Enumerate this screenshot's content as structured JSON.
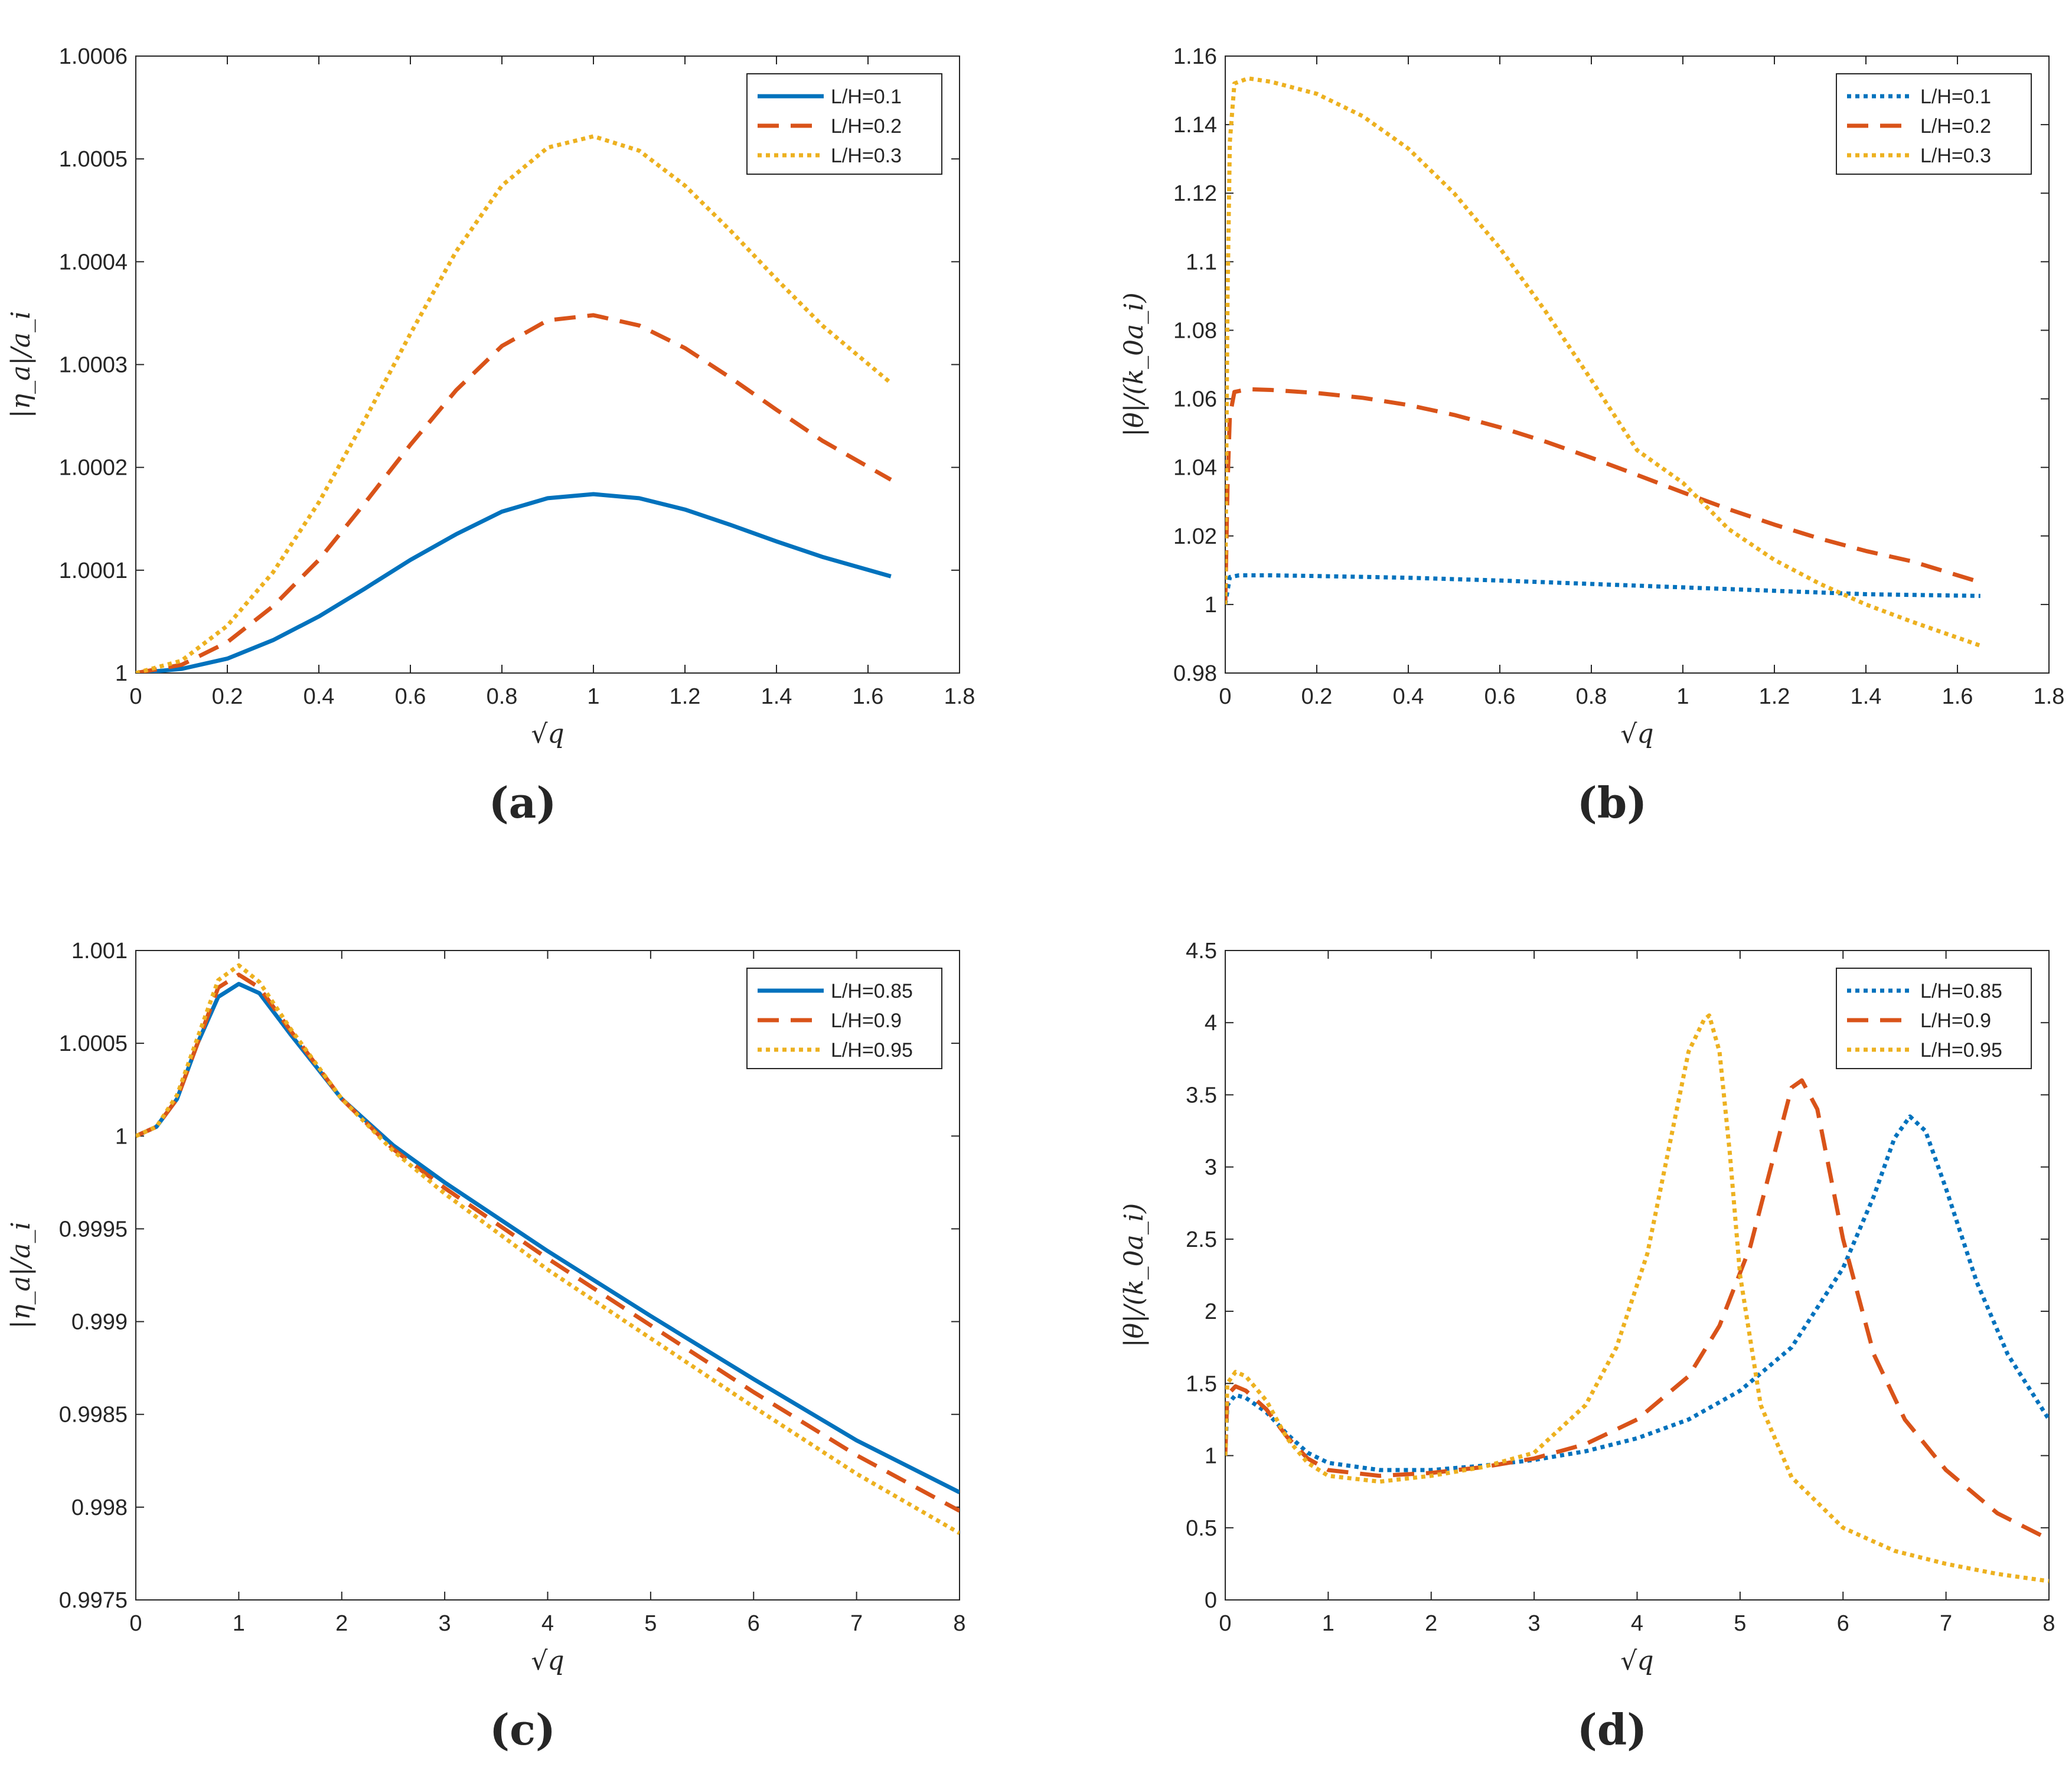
{
  "chart_data": [
    {
      "id": "a",
      "type": "line",
      "caption": "(a)",
      "xlabel": "√q",
      "ylabel": "|η_a|/a_i",
      "xlim": [
        0,
        1.8
      ],
      "ylim": [
        1.0,
        1.0006
      ],
      "xticks": [
        0,
        0.2,
        0.4,
        0.6,
        0.8,
        1,
        1.2,
        1.4,
        1.6,
        1.8
      ],
      "xticklabels": [
        "0",
        "0.2",
        "0.4",
        "0.6",
        "0.8",
        "1",
        "1.2",
        "1.4",
        "1.6",
        "1.8"
      ],
      "yticks": [
        1.0,
        1.0001,
        1.0002,
        1.0003,
        1.0004,
        1.0005,
        1.0006
      ],
      "yticklabels": [
        "1",
        "1.0001",
        "1.0002",
        "1.0003",
        "1.0004",
        "1.0005",
        "1.0006"
      ],
      "legend_position": "top-right",
      "series": [
        {
          "name": "L/H=0.1",
          "color": "#0072BD",
          "style": "solid",
          "x": [
            0,
            0.1,
            0.2,
            0.3,
            0.4,
            0.5,
            0.6,
            0.7,
            0.8,
            0.9,
            1.0,
            1.1,
            1.2,
            1.3,
            1.4,
            1.5,
            1.65
          ],
          "y": [
            1.0,
            1.000004,
            1.000014,
            1.000032,
            1.000055,
            1.000082,
            1.00011,
            1.000135,
            1.000157,
            1.00017,
            1.000174,
            1.00017,
            1.000159,
            1.000144,
            1.000128,
            1.000113,
            1.000094
          ]
        },
        {
          "name": "L/H=0.2",
          "color": "#D95319",
          "style": "dashed",
          "x": [
            0,
            0.1,
            0.2,
            0.3,
            0.4,
            0.5,
            0.6,
            0.7,
            0.8,
            0.9,
            1.0,
            1.1,
            1.2,
            1.3,
            1.4,
            1.5,
            1.65
          ],
          "y": [
            1.0,
            1.000008,
            1.00003,
            1.000065,
            1.00011,
            1.000165,
            1.000222,
            1.000275,
            1.000318,
            1.000343,
            1.000348,
            1.000338,
            1.000316,
            1.000287,
            1.000256,
            1.000226,
            1.000188
          ]
        },
        {
          "name": "L/H=0.3",
          "color": "#EDB120",
          "style": "dotted",
          "x": [
            0,
            0.1,
            0.2,
            0.3,
            0.4,
            0.5,
            0.6,
            0.7,
            0.8,
            0.9,
            1.0,
            1.1,
            1.2,
            1.3,
            1.4,
            1.5,
            1.65
          ],
          "y": [
            1.0,
            1.000012,
            1.000046,
            1.000098,
            1.000166,
            1.000246,
            1.00033,
            1.00041,
            1.000474,
            1.000511,
            1.000522,
            1.000508,
            1.000474,
            1.00043,
            1.000383,
            1.000338,
            1.000282
          ]
        }
      ]
    },
    {
      "id": "b",
      "type": "line",
      "caption": "(b)",
      "xlabel": "√q",
      "ylabel": "|θ|/(k_0a_i)",
      "xlim": [
        0,
        1.8
      ],
      "ylim": [
        0.98,
        1.16
      ],
      "xticks": [
        0,
        0.2,
        0.4,
        0.6,
        0.8,
        1,
        1.2,
        1.4,
        1.6,
        1.8
      ],
      "xticklabels": [
        "0",
        "0.2",
        "0.4",
        "0.6",
        "0.8",
        "1",
        "1.2",
        "1.4",
        "1.6",
        "1.8"
      ],
      "yticks": [
        0.98,
        1.0,
        1.02,
        1.04,
        1.06,
        1.08,
        1.1,
        1.12,
        1.14,
        1.16
      ],
      "yticklabels": [
        "0.98",
        "1",
        "1.02",
        "1.04",
        "1.06",
        "1.08",
        "1.1",
        "1.12",
        "1.14",
        "1.16"
      ],
      "legend_position": "top-right",
      "series": [
        {
          "name": "L/H=0.1",
          "color": "#0072BD",
          "style": "dotted",
          "x": [
            0,
            0.005,
            0.01,
            0.03,
            0.1,
            0.2,
            0.4,
            0.6,
            0.8,
            1.0,
            1.2,
            1.4,
            1.65
          ],
          "y": [
            1.0,
            1.004,
            1.008,
            1.0085,
            1.0085,
            1.0083,
            1.0078,
            1.007,
            1.006,
            1.005,
            1.004,
            1.003,
            1.0025
          ]
        },
        {
          "name": "L/H=0.2",
          "color": "#D95319",
          "style": "dashed",
          "x": [
            0,
            0.005,
            0.01,
            0.02,
            0.05,
            0.1,
            0.2,
            0.3,
            0.4,
            0.5,
            0.6,
            0.7,
            0.8,
            0.9,
            1.0,
            1.1,
            1.2,
            1.3,
            1.4,
            1.5,
            1.65
          ],
          "y": [
            1.0,
            1.035,
            1.055,
            1.062,
            1.0628,
            1.0626,
            1.0617,
            1.0603,
            1.0582,
            1.0553,
            1.0517,
            1.0475,
            1.0428,
            1.0378,
            1.0327,
            1.0278,
            1.0233,
            1.0192,
            1.0156,
            1.0126,
            1.0065
          ]
        },
        {
          "name": "L/H=0.3",
          "color": "#EDB120",
          "style": "dotted",
          "x": [
            0,
            0.005,
            0.01,
            0.02,
            0.05,
            0.1,
            0.2,
            0.3,
            0.4,
            0.5,
            0.6,
            0.7,
            0.8,
            0.9,
            1.0,
            1.1,
            1.2,
            1.3,
            1.4,
            1.5,
            1.65
          ],
          "y": [
            1.0,
            1.09,
            1.135,
            1.152,
            1.1535,
            1.1525,
            1.149,
            1.1425,
            1.133,
            1.12,
            1.104,
            1.0855,
            1.0655,
            1.045,
            1.0355,
            1.022,
            1.013,
            1.006,
            1.0,
            0.995,
            0.988
          ]
        }
      ]
    },
    {
      "id": "c",
      "type": "line",
      "caption": "(c)",
      "xlabel": "√q",
      "ylabel": "|η_a|/a_i",
      "xlim": [
        0,
        8
      ],
      "ylim": [
        0.9975,
        1.001
      ],
      "xticks": [
        0,
        1,
        2,
        3,
        4,
        5,
        6,
        7,
        8
      ],
      "xticklabels": [
        "0",
        "1",
        "2",
        "3",
        "4",
        "5",
        "6",
        "7",
        "8"
      ],
      "yticks": [
        0.9975,
        0.998,
        0.9985,
        0.999,
        0.9995,
        1.0,
        1.0005,
        1.001
      ],
      "yticklabels": [
        "0.9975",
        "0.998",
        "0.9985",
        "0.999",
        "0.9995",
        "1",
        "1.0005",
        "1.001"
      ],
      "legend_position": "top-right",
      "series": [
        {
          "name": "L/H=0.85",
          "color": "#0072BD",
          "style": "solid",
          "x": [
            0,
            0.2,
            0.4,
            0.6,
            0.8,
            1.0,
            1.2,
            1.5,
            2.0,
            2.5,
            3,
            4,
            5,
            6,
            7,
            8
          ],
          "y": [
            1.0,
            1.00005,
            1.0002,
            1.0005,
            1.00075,
            1.00082,
            1.00077,
            1.00055,
            1.0002,
            0.99995,
            0.99975,
            0.99938,
            0.99903,
            0.99869,
            0.99836,
            0.99808
          ]
        },
        {
          "name": "L/H=0.9",
          "color": "#D95319",
          "style": "dashed",
          "x": [
            0,
            0.2,
            0.4,
            0.6,
            0.8,
            1.0,
            1.2,
            1.5,
            2.0,
            2.5,
            3,
            4,
            5,
            6,
            7,
            8
          ],
          "y": [
            1.0,
            1.00005,
            1.0002,
            1.0005,
            1.0008,
            1.00087,
            1.0008,
            1.00057,
            1.0002,
            0.99993,
            0.99972,
            0.99934,
            0.99898,
            0.99862,
            0.99828,
            0.99798
          ]
        },
        {
          "name": "L/H=0.95",
          "color": "#EDB120",
          "style": "dotted",
          "x": [
            0,
            0.2,
            0.4,
            0.6,
            0.8,
            1.0,
            1.2,
            1.5,
            2.0,
            2.5,
            3,
            4,
            5,
            6,
            7,
            8
          ],
          "y": [
            1.0,
            1.00005,
            1.00022,
            1.00053,
            1.00084,
            1.00092,
            1.00083,
            1.00058,
            1.0002,
            0.99992,
            0.99969,
            0.99928,
            0.99891,
            0.99854,
            0.99818,
            0.99786
          ]
        }
      ]
    },
    {
      "id": "d",
      "type": "line",
      "caption": "(d)",
      "xlabel": "√q",
      "ylabel": "|θ|/(k_0a_i)",
      "xlim": [
        0,
        8
      ],
      "ylim": [
        0,
        4.5
      ],
      "xticks": [
        0,
        1,
        2,
        3,
        4,
        5,
        6,
        7,
        8
      ],
      "xticklabels": [
        "0",
        "1",
        "2",
        "3",
        "4",
        "5",
        "6",
        "7",
        "8"
      ],
      "yticks": [
        0,
        0.5,
        1,
        1.5,
        2,
        2.5,
        3,
        3.5,
        4,
        4.5
      ],
      "yticklabels": [
        "0",
        "0.5",
        "1",
        "1.5",
        "2",
        "2.5",
        "3",
        "3.5",
        "4",
        "4.5"
      ],
      "legend_position": "top-right",
      "series": [
        {
          "name": "L/H=0.85",
          "color": "#0072BD",
          "style": "dotted",
          "x": [
            0,
            0.02,
            0.1,
            0.2,
            0.4,
            0.6,
            0.8,
            1.0,
            1.5,
            2.0,
            2.5,
            3.0,
            3.5,
            4.0,
            4.5,
            5.0,
            5.5,
            6.0,
            6.3,
            6.5,
            6.65,
            6.8,
            7.0,
            7.3,
            7.6,
            8.0
          ],
          "y": [
            1.0,
            1.35,
            1.42,
            1.4,
            1.3,
            1.15,
            1.02,
            0.95,
            0.9,
            0.9,
            0.93,
            0.97,
            1.03,
            1.12,
            1.25,
            1.45,
            1.75,
            2.3,
            2.8,
            3.2,
            3.35,
            3.25,
            2.85,
            2.2,
            1.7,
            1.25
          ]
        },
        {
          "name": "L/H=0.9",
          "color": "#D95319",
          "style": "dashed",
          "x": [
            0,
            0.02,
            0.1,
            0.2,
            0.4,
            0.6,
            0.8,
            1.0,
            1.5,
            2.0,
            2.5,
            3.0,
            3.5,
            4.0,
            4.5,
            4.8,
            5.1,
            5.3,
            5.5,
            5.6,
            5.75,
            6.0,
            6.3,
            6.6,
            7.0,
            7.5,
            8.0
          ],
          "y": [
            1.0,
            1.42,
            1.48,
            1.45,
            1.32,
            1.13,
            0.98,
            0.9,
            0.86,
            0.88,
            0.92,
            0.98,
            1.08,
            1.25,
            1.55,
            1.9,
            2.45,
            3.0,
            3.55,
            3.6,
            3.4,
            2.5,
            1.7,
            1.25,
            0.9,
            0.6,
            0.42
          ]
        },
        {
          "name": "L/H=0.95",
          "color": "#EDB120",
          "style": "dotted",
          "x": [
            0,
            0.02,
            0.1,
            0.2,
            0.4,
            0.6,
            0.8,
            1.0,
            1.5,
            2.0,
            2.5,
            3.0,
            3.5,
            3.8,
            4.1,
            4.3,
            4.5,
            4.65,
            4.7,
            4.8,
            4.9,
            5.0,
            5.2,
            5.5,
            6.0,
            6.5,
            7.0,
            7.5,
            8.0
          ],
          "y": [
            1.0,
            1.5,
            1.58,
            1.55,
            1.38,
            1.12,
            0.95,
            0.86,
            0.82,
            0.86,
            0.92,
            1.02,
            1.35,
            1.75,
            2.4,
            3.1,
            3.8,
            4.02,
            4.05,
            3.8,
            3.1,
            2.25,
            1.35,
            0.85,
            0.5,
            0.34,
            0.25,
            0.18,
            0.13
          ]
        }
      ]
    }
  ]
}
